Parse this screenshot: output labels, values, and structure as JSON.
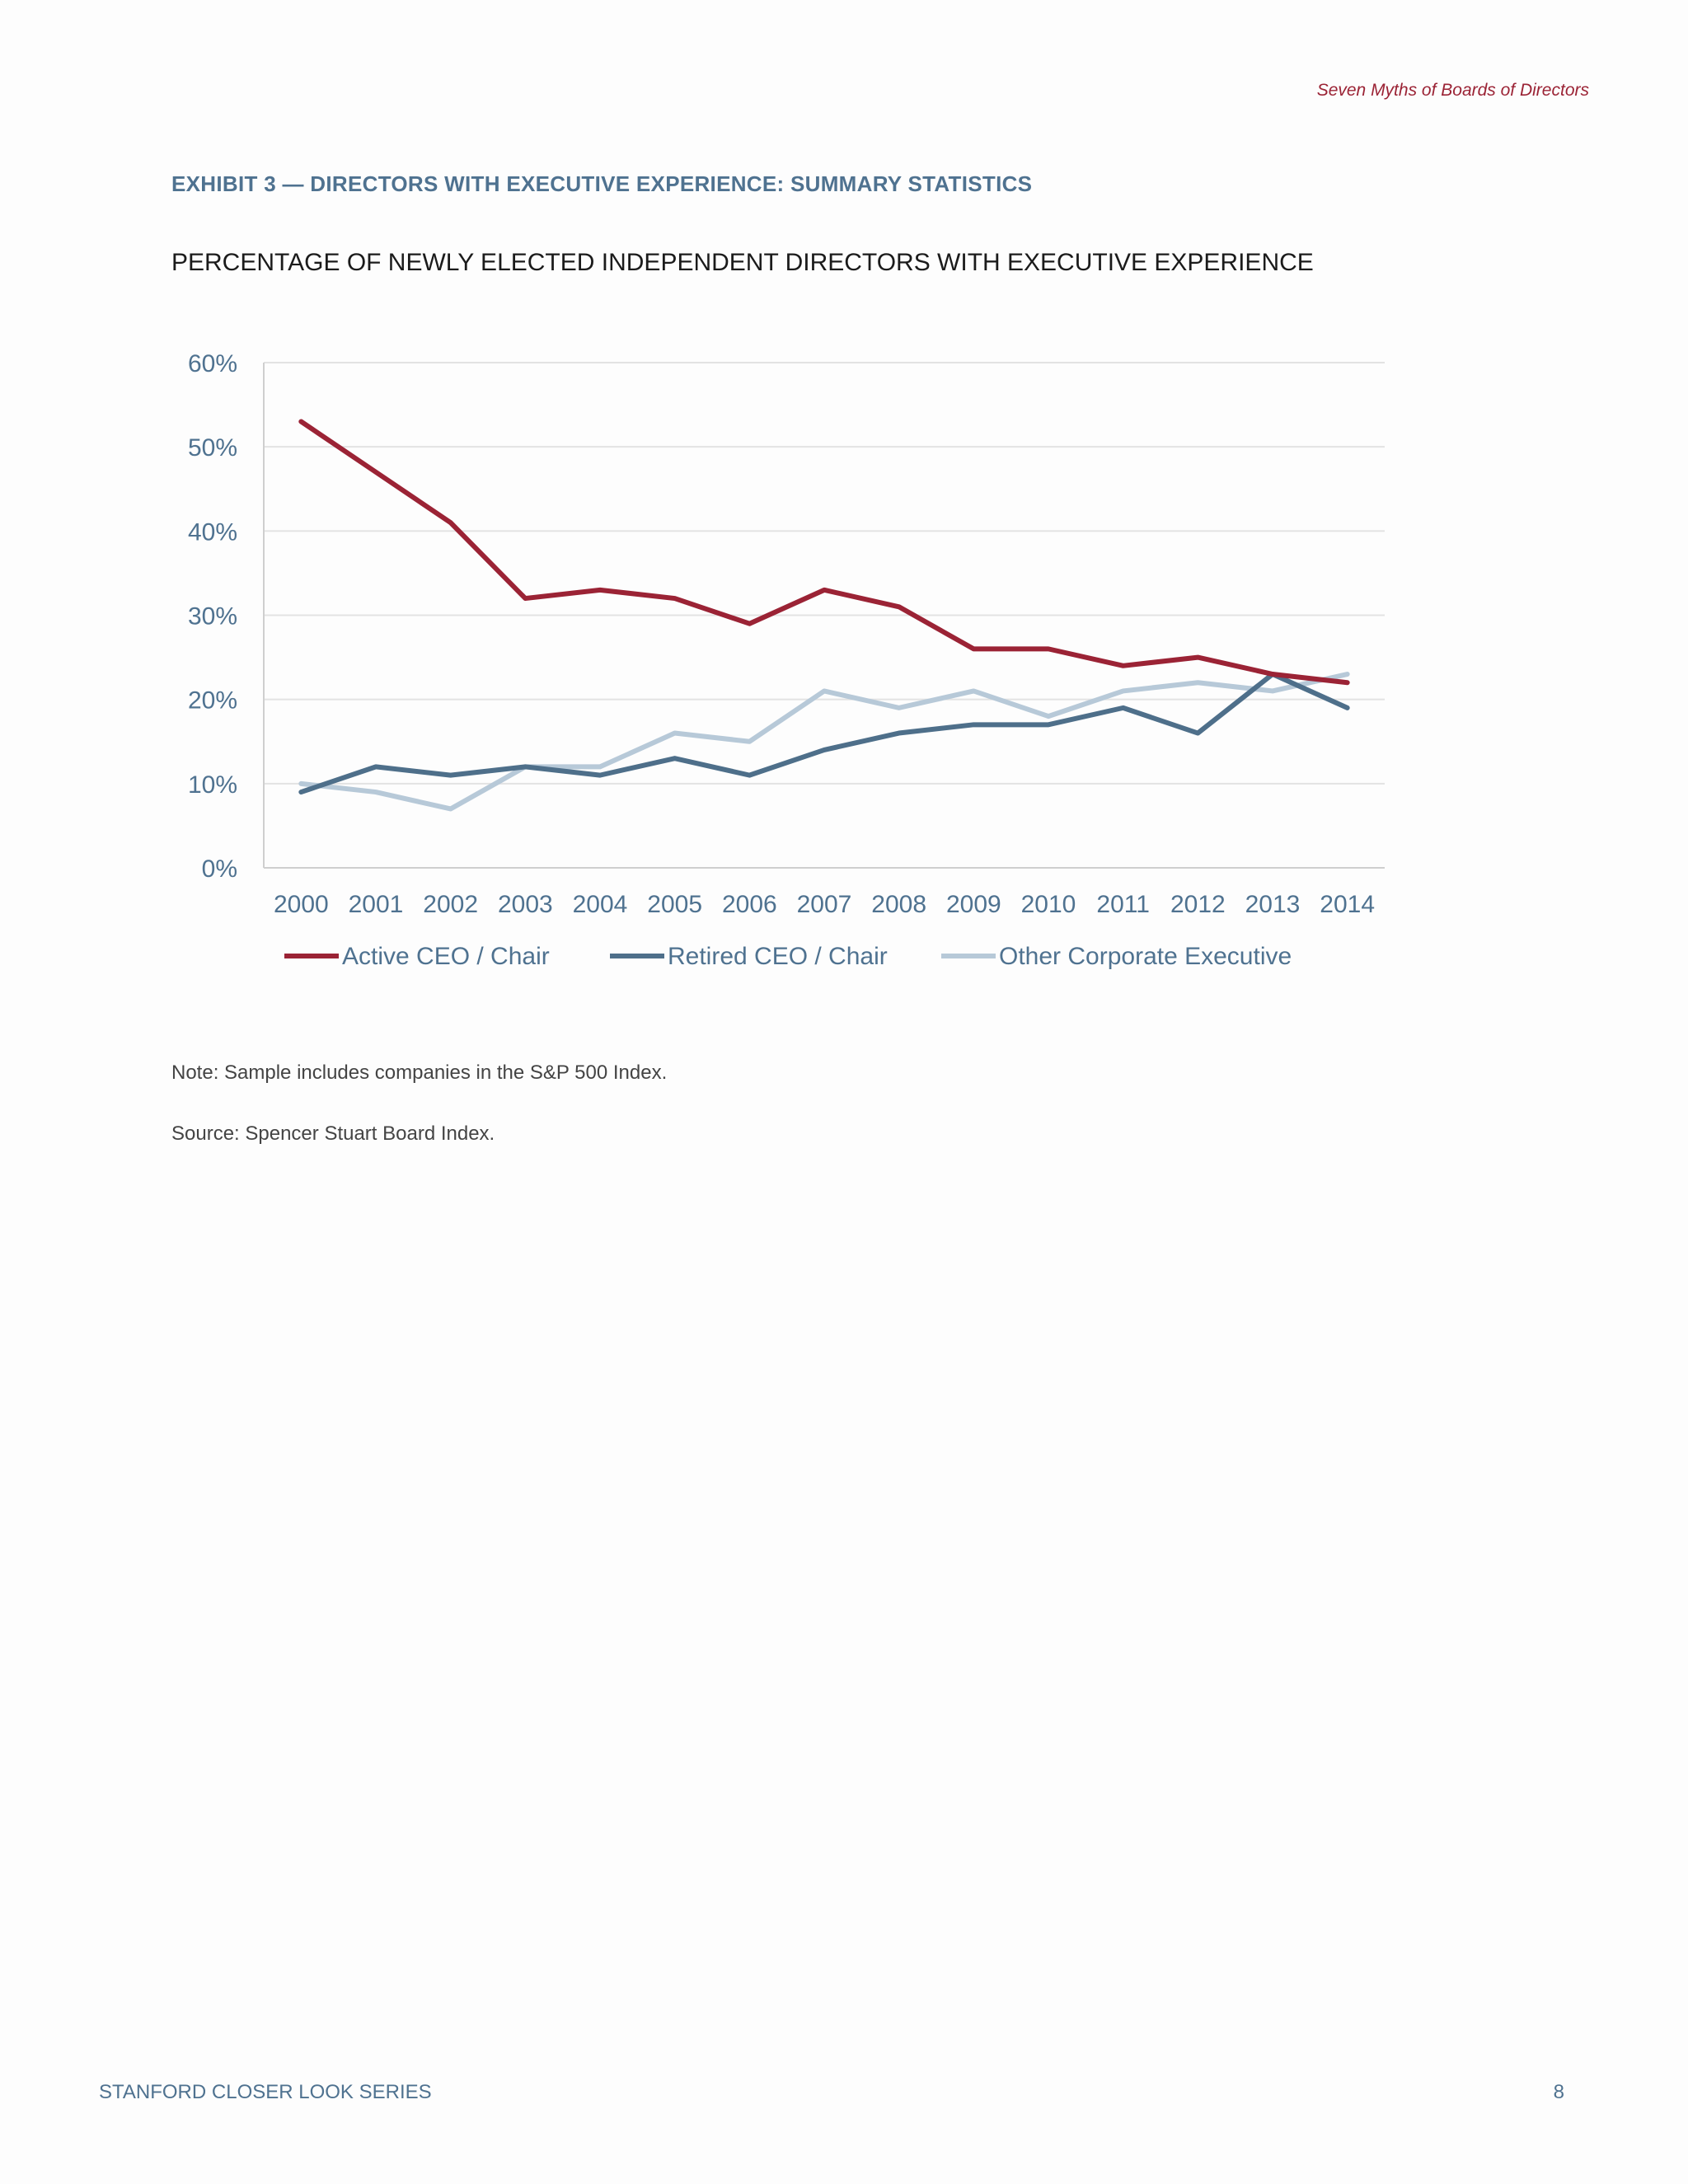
{
  "header": {
    "running_title": "Seven Myths of Boards of Directors"
  },
  "exhibit": {
    "label": "EXHIBIT 3 — DIRECTORS WITH EXECUTIVE EXPERIENCE: SUMMARY STATISTICS"
  },
  "notes": {
    "note": "Note: Sample includes companies in the S&P 500 Index.",
    "source": "Source: Spencer Stuart Board Index."
  },
  "footer": {
    "series_name": "STANFORD CLOSER LOOK SERIES",
    "page_number": "8"
  },
  "chart_data": {
    "type": "line",
    "title": "PERCENTAGE OF NEWLY ELECTED INDEPENDENT DIRECTORS WITH EXECUTIVE EXPERIENCE",
    "xlabel": "",
    "ylabel": "",
    "x": [
      "2000",
      "2001",
      "2002",
      "2003",
      "2004",
      "2005",
      "2006",
      "2007",
      "2008",
      "2009",
      "2010",
      "2011",
      "2012",
      "2013",
      "2014"
    ],
    "ylim": [
      0,
      60
    ],
    "yticks": [
      "0%",
      "10%",
      "20%",
      "30%",
      "40%",
      "50%",
      "60%"
    ],
    "grid": true,
    "legend": "bottom",
    "series": [
      {
        "name": "Active CEO /  Chair",
        "color": "#9b2335",
        "values": [
          53,
          47,
          41,
          32,
          33,
          32,
          29,
          33,
          31,
          26,
          26,
          24,
          25,
          23,
          22
        ]
      },
      {
        "name": "Retired CEO / Chair",
        "color": "#4e6f8a",
        "values": [
          9,
          12,
          11,
          12,
          11,
          13,
          11,
          14,
          16,
          17,
          17,
          19,
          16,
          23,
          19
        ]
      },
      {
        "name": "Other Corporate Executive",
        "color": "#b7c9d8",
        "values": [
          10,
          9,
          7,
          12,
          12,
          16,
          15,
          21,
          19,
          21,
          18,
          21,
          22,
          21,
          23
        ]
      }
    ]
  }
}
